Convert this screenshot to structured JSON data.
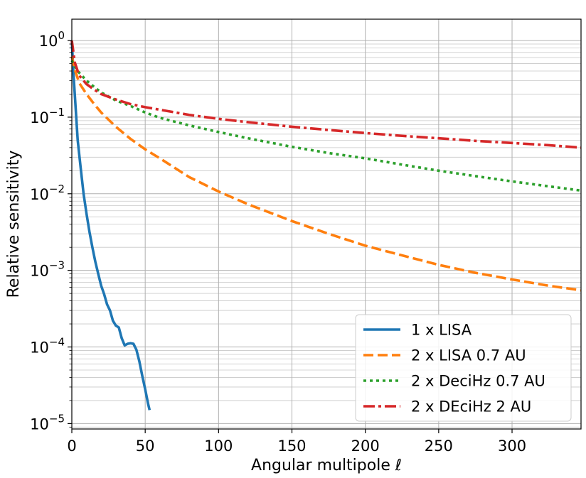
{
  "chart_data": {
    "type": "line",
    "xlabel": "Angular multipole ℓ",
    "ylabel": "Relative sensitivity",
    "xlim": [
      0,
      347
    ],
    "ylim": [
      8.5e-06,
      1.9
    ],
    "yscale": "log",
    "grid": true,
    "grid_minor": true,
    "legend_position": "lower-right",
    "x_ticks": [
      0,
      50,
      100,
      150,
      200,
      250,
      300
    ],
    "x_tick_labels": [
      "0",
      "50",
      "100",
      "150",
      "200",
      "250",
      "300"
    ],
    "y_ticks": [
      1,
      0.1,
      0.01,
      0.001,
      0.0001,
      1e-05
    ],
    "y_tick_labels": [
      {
        "base": "10",
        "exp": "0"
      },
      {
        "base": "10",
        "exp": "−1"
      },
      {
        "base": "10",
        "exp": "−2"
      },
      {
        "base": "10",
        "exp": "−3"
      },
      {
        "base": "10",
        "exp": "−4"
      },
      {
        "base": "10",
        "exp": "−5"
      }
    ],
    "series": [
      {
        "name": "1 x LISA",
        "color": "#1f77b4",
        "style": "solid",
        "x": [
          0,
          1,
          2,
          4,
          6,
          8,
          10,
          12,
          14,
          16,
          18,
          20,
          22,
          24,
          26,
          28,
          30,
          32,
          34,
          36,
          38,
          40,
          42,
          44,
          46,
          48,
          50,
          52,
          53
        ],
        "y": [
          1.0,
          0.4,
          0.2,
          0.05,
          0.022,
          0.01,
          0.0055,
          0.0032,
          0.002,
          0.0013,
          0.0009,
          0.00063,
          0.00049,
          0.00036,
          0.0003,
          0.00022,
          0.00019,
          0.00018,
          0.00013,
          0.000105,
          0.00011,
          0.000112,
          0.00011,
          9.2e-05,
          6.5e-05,
          4.2e-05,
          2.8e-05,
          1.8e-05,
          1.5e-05
        ]
      },
      {
        "name": "2 x LISA 0.7 AU",
        "color": "#ff7f0e",
        "style": "dashed",
        "x": [
          0,
          2,
          5,
          10,
          15,
          20,
          30,
          40,
          50,
          60,
          80,
          100,
          120,
          150,
          175,
          200,
          225,
          250,
          275,
          300,
          325,
          347
        ],
        "y": [
          0.62,
          0.42,
          0.28,
          0.2,
          0.15,
          0.115,
          0.075,
          0.052,
          0.038,
          0.029,
          0.0165,
          0.0107,
          0.0073,
          0.0044,
          0.003,
          0.0021,
          0.00157,
          0.00118,
          0.00093,
          0.00076,
          0.00063,
          0.00055
        ]
      },
      {
        "name": "2 x DeciHz 0.7 AU",
        "color": "#2ca02c",
        "style": "dotted",
        "x": [
          0,
          2,
          5,
          10,
          15,
          20,
          30,
          40,
          50,
          60,
          80,
          100,
          120,
          150,
          175,
          200,
          225,
          250,
          275,
          300,
          325,
          347
        ],
        "y": [
          0.55,
          0.46,
          0.38,
          0.3,
          0.25,
          0.21,
          0.165,
          0.14,
          0.115,
          0.098,
          0.078,
          0.064,
          0.053,
          0.041,
          0.034,
          0.029,
          0.024,
          0.02,
          0.017,
          0.0145,
          0.0125,
          0.011
        ]
      },
      {
        "name": "2 x DEciHz 2 AU",
        "color": "#d62728",
        "style": "dashdot",
        "x": [
          0,
          2,
          5,
          10,
          15,
          20,
          30,
          40,
          50,
          60,
          80,
          100,
          120,
          150,
          175,
          200,
          225,
          250,
          275,
          300,
          325,
          347
        ],
        "y": [
          1.0,
          0.52,
          0.35,
          0.27,
          0.23,
          0.2,
          0.17,
          0.148,
          0.135,
          0.125,
          0.107,
          0.095,
          0.086,
          0.075,
          0.068,
          0.062,
          0.057,
          0.053,
          0.049,
          0.046,
          0.043,
          0.04
        ]
      }
    ]
  }
}
